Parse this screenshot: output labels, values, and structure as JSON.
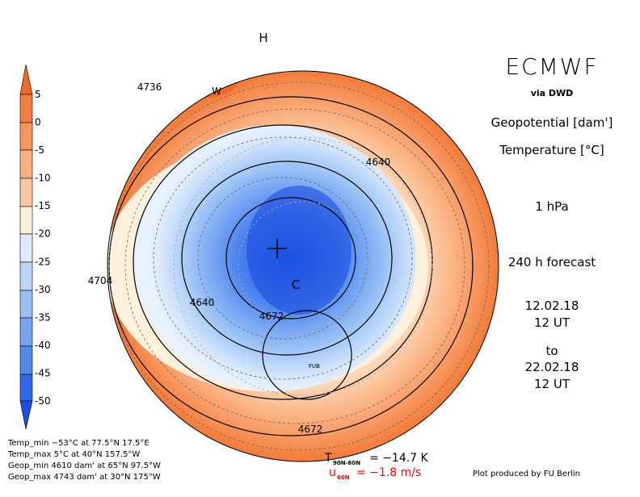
{
  "map": {
    "labels": [
      "H",
      "W",
      "4736",
      "4640",
      "4704",
      "4640",
      "4672",
      "C",
      "FUB",
      "4672"
    ],
    "colorbar": {
      "ticks": [
        5,
        0,
        -5,
        -10,
        -15,
        -20,
        -25,
        -30,
        -35,
        -40,
        -45,
        -50
      ]
    },
    "header": {
      "title": "ECMWF",
      "source": "via DWD",
      "field1": "Geopotential [dam']",
      "field2": "Temperature [°C]",
      "level": "1 hPa",
      "forecast": "240 h forecast",
      "from_date": "12.02.18",
      "from_time": "12 UT",
      "to": "to",
      "to_date": "22.02.18",
      "to_time": "12 UT"
    },
    "stats": [
      "Temp_min −53°C at 77.5°N 17.5°E",
      "Temp_max 5°C at 40°N 157.5°W",
      "Geop_min 4610 dam' at 65°N 97.5°W",
      "Geop_max 4743 dam' at 30°N 175°W"
    ],
    "means": {
      "t_symbol": "T",
      "t_sub": "90N-60N",
      "t_value": "= −14.7 K",
      "u_symbol": "u",
      "u_sub": "60N",
      "u_value": "= −1.8 m/s"
    },
    "credit": "Plot produced by FU Berlin"
  }
}
